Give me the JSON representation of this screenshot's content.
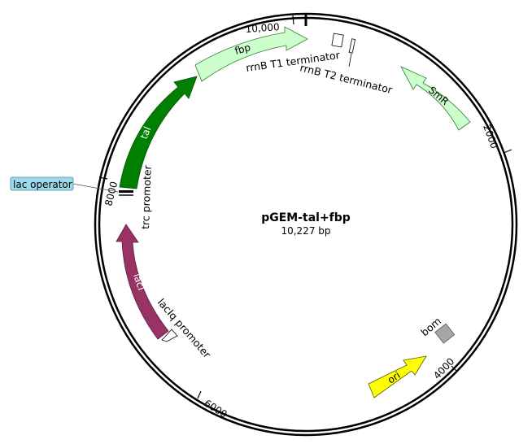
{
  "plasmid": {
    "name": "pGEM-tal+fbp",
    "length_label": "10,227 bp"
  },
  "ticks": {
    "t10000": "10,000",
    "t2000": "2000",
    "t4000": "4000",
    "t6000": "6000",
    "t8000": "8000"
  },
  "features": {
    "fbp": {
      "label": "fbp",
      "color": "#ccffcc"
    },
    "SmR": {
      "label": "SmR",
      "color": "#ccffcc"
    },
    "tal": {
      "label": "tal",
      "color": "#008000"
    },
    "lacI": {
      "label": "lacI",
      "color": "#993366"
    },
    "ori": {
      "label": "ori",
      "color": "#ffff00"
    },
    "bom": {
      "label": "bom",
      "color": "#a6a6a6"
    },
    "rrnB_T1": {
      "label": "rrnB T1 terminator"
    },
    "rrnB_T2": {
      "label": "rrnB T2 terminator"
    },
    "trc": {
      "label": "trc promoter"
    },
    "lacIq": {
      "label": "lacIq promoter"
    },
    "lac_operator": {
      "label": "lac operator",
      "color": "#9fd8e8"
    }
  }
}
